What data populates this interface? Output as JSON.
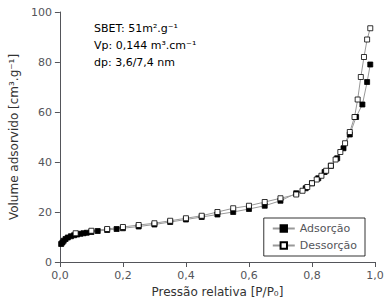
{
  "chart_data": {
    "type": "line",
    "xlabel": "Pressão relativa [P/P₀]",
    "ylabel": "Volume adsorvido [cm³.g⁻¹]",
    "annotations": [
      "SBET: 51m².g⁻¹",
      "Vp: 0,144 m³.cm⁻¹",
      "dp: 3,6/7,4 nm"
    ],
    "xlim": [
      0.0,
      1.0
    ],
    "ylim": [
      0,
      100
    ],
    "xticks": [
      {
        "value": 0.0,
        "label": "0,0"
      },
      {
        "value": 0.2,
        "label": "0,2"
      },
      {
        "value": 0.4,
        "label": "0,4"
      },
      {
        "value": 0.6,
        "label": "0,6"
      },
      {
        "value": 0.8,
        "label": "0,8"
      },
      {
        "value": 1.0,
        "label": "1,0"
      }
    ],
    "yticks": [
      0,
      20,
      40,
      60,
      80,
      100
    ],
    "grid": false,
    "legend": "lower right",
    "series": [
      {
        "name": "Adsorção",
        "color": "#999999",
        "marker": "filled_square",
        "x": [
          0.004,
          0.008,
          0.012,
          0.018,
          0.025,
          0.035,
          0.045,
          0.055,
          0.065,
          0.075,
          0.085,
          0.1,
          0.12,
          0.15,
          0.18,
          0.2,
          0.25,
          0.3,
          0.35,
          0.4,
          0.45,
          0.5,
          0.55,
          0.6,
          0.65,
          0.7,
          0.75,
          0.78,
          0.8,
          0.82,
          0.84,
          0.86,
          0.88,
          0.9,
          0.92,
          0.94,
          0.96,
          0.975,
          0.985
        ],
        "values": [
          7.2,
          7.8,
          8.5,
          9.2,
          9.8,
          10.3,
          10.7,
          11.0,
          11.3,
          11.5,
          11.7,
          12.0,
          12.4,
          12.8,
          13.2,
          13.5,
          14.2,
          15.0,
          16.0,
          17.0,
          18.0,
          19.0,
          20.0,
          21.2,
          22.5,
          24.5,
          27.5,
          29.5,
          31.5,
          33.5,
          36.0,
          38.5,
          41.5,
          45.5,
          51.0,
          58.0,
          63.0,
          72.0,
          79.0
        ]
      },
      {
        "name": "Dessorção",
        "color": "#999999",
        "marker": "open_square",
        "x": [
          0.985,
          0.975,
          0.965,
          0.955,
          0.945,
          0.935,
          0.92,
          0.905,
          0.89,
          0.875,
          0.86,
          0.845,
          0.83,
          0.815,
          0.8,
          0.785,
          0.77,
          0.75,
          0.7,
          0.65,
          0.6,
          0.55,
          0.5,
          0.45,
          0.4,
          0.35,
          0.3,
          0.25,
          0.2,
          0.15,
          0.1,
          0.05
        ],
        "values": [
          93.5,
          89.0,
          82.0,
          74.0,
          65.0,
          58.0,
          52.0,
          47.5,
          44.0,
          41.0,
          38.5,
          36.5,
          34.5,
          33.0,
          31.5,
          30.0,
          28.5,
          27.0,
          25.5,
          24.0,
          22.5,
          21.5,
          20.0,
          18.5,
          17.5,
          16.5,
          15.5,
          14.8,
          14.0,
          13.2,
          12.5,
          11.5
        ]
      }
    ]
  }
}
